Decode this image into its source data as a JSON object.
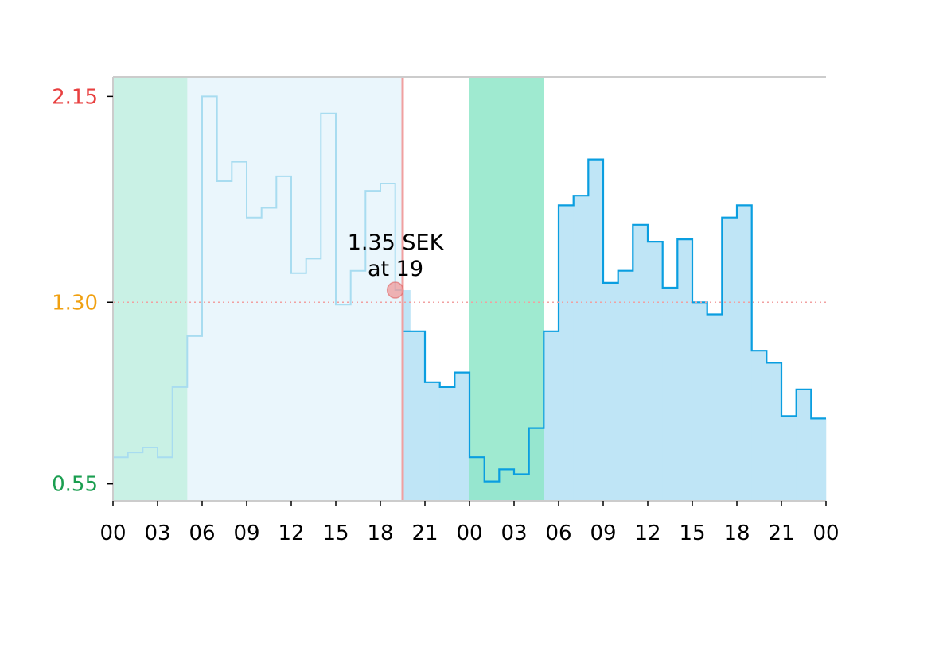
{
  "chart_data": {
    "type": "step-area",
    "title": "",
    "xlabel": "",
    "ylabel": "",
    "x_tick_labels": [
      "00",
      "03",
      "06",
      "09",
      "12",
      "15",
      "18",
      "21",
      "00",
      "03",
      "06",
      "09",
      "12",
      "15",
      "18",
      "21",
      "00"
    ],
    "y_ticks": [
      {
        "value": 0.55,
        "label": "0.55",
        "color": "#1a9e50"
      },
      {
        "value": 1.3,
        "label": "1.30",
        "color": "#f0a010"
      },
      {
        "value": 2.15,
        "label": "2.15",
        "color": "#e84040"
      }
    ],
    "ylim": [
      0.48,
      2.23
    ],
    "xlim_hours": [
      0,
      48
    ],
    "hourly_prices_sek": [
      0.66,
      0.68,
      0.7,
      0.66,
      0.95,
      1.16,
      2.15,
      1.8,
      1.88,
      1.65,
      1.69,
      1.82,
      1.42,
      1.48,
      2.08,
      1.29,
      1.43,
      1.76,
      1.79,
      1.35,
      1.18,
      0.97,
      0.95,
      1.01,
      0.66,
      0.56,
      0.61,
      0.59,
      0.78,
      1.18,
      1.7,
      1.74,
      1.89,
      1.38,
      1.43,
      1.62,
      1.55,
      1.36,
      1.56,
      1.3,
      1.25,
      1.65,
      1.7,
      1.1,
      1.05,
      0.83,
      0.94,
      0.82
    ],
    "current_hour": 19.5,
    "past_until_hour": 19.5,
    "cheap_windows": [
      {
        "start": 0,
        "end": 5,
        "color": "#c3f0e0"
      },
      {
        "start": 24,
        "end": 29,
        "color": "#8ee6c8"
      }
    ],
    "reference_line": {
      "value": 1.3,
      "color": "#f2a0a0"
    },
    "highlight": {
      "hour": 19,
      "value": 1.35,
      "label_line1": "1.35 SEK",
      "label_line2": "at 19"
    },
    "colors": {
      "past_fill": "#eaf6fc",
      "past_line": "#a8dcf0",
      "future_fill": "#bfe5f6",
      "future_line": "#0a9ee0",
      "now_line": "#f0a0a0",
      "marker": "#f08c8c",
      "axis": "#cccccc"
    }
  }
}
